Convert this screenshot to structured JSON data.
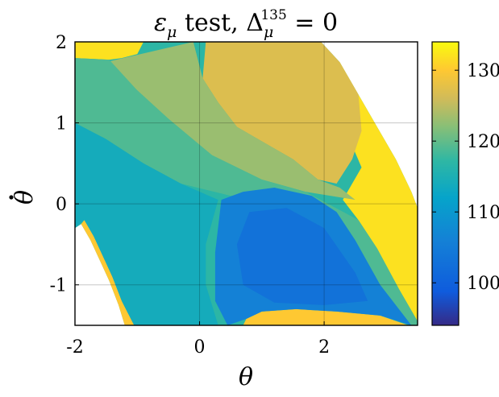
{
  "chart_data": {
    "type": "heatmap",
    "title": "εμ test, Δμ135 = 0",
    "title_parts": {
      "symbol": "ε",
      "symbol_sub": "μ",
      "middle": " test, ",
      "delta": "Δ",
      "delta_sub": "μ",
      "delta_sup": "135",
      "tail": " = 0"
    },
    "xlabel": "θ",
    "ylabel": "θ̇",
    "ylabel_base": "θ",
    "xlim": [
      -2,
      3.5
    ],
    "ylim": [
      -1.5,
      2
    ],
    "xticks": [
      -2,
      0,
      2
    ],
    "yticks": [
      -1,
      0,
      1,
      2
    ],
    "xtick_labels": [
      "-2",
      "0",
      "2"
    ],
    "ytick_labels": [
      "-1",
      "0",
      "1",
      "2"
    ],
    "grid": true,
    "colorbar": {
      "range": [
        94,
        134
      ],
      "ticks": [
        100,
        110,
        120,
        130
      ],
      "tick_labels": [
        "100",
        "110",
        "120",
        "130"
      ],
      "colormap": "parula",
      "position": "right"
    },
    "regions": [
      {
        "name": "white-top-right",
        "value": null,
        "polygon": [
          [
            0.55,
            2
          ],
          [
            3.5,
            2
          ],
          [
            3.5,
            -0.05
          ],
          [
            3.4,
            0.15
          ],
          [
            3.15,
            0.55
          ],
          [
            2.85,
            0.95
          ],
          [
            2.55,
            1.35
          ],
          [
            2.25,
            1.75
          ],
          [
            1.95,
            2
          ]
        ]
      },
      {
        "name": "white-bottom-left",
        "value": null,
        "polygon": [
          [
            -2,
            -1.5
          ],
          [
            -2,
            -0.3
          ],
          [
            -1.9,
            -0.25
          ],
          [
            -1.75,
            -0.45
          ],
          [
            -1.6,
            -0.7
          ],
          [
            -1.45,
            -0.95
          ],
          [
            -1.3,
            -1.25
          ],
          [
            -1.2,
            -1.5
          ]
        ]
      },
      {
        "name": "yellow-top-left",
        "value": 132,
        "polygon": [
          [
            -2,
            2
          ],
          [
            -0.9,
            2
          ],
          [
            -1.0,
            1.85
          ],
          [
            -1.25,
            1.8
          ],
          [
            -1.45,
            1.78
          ],
          [
            -2,
            1.8
          ]
        ]
      },
      {
        "name": "yellow-band-diagonal",
        "value": 132,
        "polygon": [
          [
            1.75,
            2
          ],
          [
            2.25,
            1.75
          ],
          [
            2.55,
            1.35
          ],
          [
            2.85,
            0.95
          ],
          [
            3.15,
            0.55
          ],
          [
            3.4,
            0.15
          ],
          [
            3.5,
            -0.05
          ],
          [
            3.5,
            -1.45
          ],
          [
            3.2,
            -1.05
          ],
          [
            2.85,
            -0.55
          ],
          [
            2.55,
            -0.2
          ],
          [
            2.3,
            0.05
          ],
          [
            2.6,
            0.45
          ],
          [
            2.35,
            0.9
          ],
          [
            2.05,
            1.35
          ]
        ]
      },
      {
        "name": "yellow-bottom-band",
        "value": 130,
        "polygon": [
          [
            0.7,
            -1.5
          ],
          [
            3.35,
            -1.5
          ],
          [
            2.9,
            -1.38
          ],
          [
            2.2,
            -1.33
          ],
          [
            1.55,
            -1.3
          ],
          [
            1.0,
            -1.33
          ],
          [
            0.75,
            -1.42
          ]
        ]
      },
      {
        "name": "yellow-bottom-left-edge",
        "value": 130,
        "polygon": [
          [
            -1.9,
            -0.25
          ],
          [
            -1.75,
            -0.45
          ],
          [
            -1.6,
            -0.7
          ],
          [
            -1.45,
            -0.95
          ],
          [
            -1.3,
            -1.25
          ],
          [
            -1.2,
            -1.5
          ],
          [
            -1.05,
            -1.5
          ],
          [
            -1.25,
            -1.2
          ],
          [
            -1.4,
            -0.9
          ],
          [
            -1.55,
            -0.65
          ],
          [
            -1.7,
            -0.4
          ],
          [
            -1.85,
            -0.2
          ]
        ]
      },
      {
        "name": "orange-upper-right",
        "value": 127,
        "polygon": [
          [
            0.1,
            2
          ],
          [
            1.95,
            2
          ],
          [
            2.25,
            1.75
          ],
          [
            2.55,
            1.35
          ],
          [
            2.6,
            0.9
          ],
          [
            2.45,
            0.55
          ],
          [
            2.2,
            0.25
          ],
          [
            1.9,
            0.3
          ],
          [
            1.5,
            0.55
          ],
          [
            1.05,
            0.75
          ],
          [
            0.6,
            0.95
          ],
          [
            0.3,
            1.25
          ],
          [
            0.05,
            1.55
          ]
        ]
      },
      {
        "name": "light-green-mid",
        "value": 123,
        "polygon": [
          [
            -1.5,
            1.75
          ],
          [
            -0.1,
            2
          ],
          [
            0.05,
            1.55
          ],
          [
            0.3,
            1.25
          ],
          [
            0.6,
            0.95
          ],
          [
            1.05,
            0.75
          ],
          [
            1.5,
            0.55
          ],
          [
            1.9,
            0.3
          ],
          [
            2.25,
            0.2
          ],
          [
            2.5,
            0.05
          ],
          [
            1.7,
            0.15
          ],
          [
            1.0,
            0.3
          ],
          [
            0.2,
            0.6
          ],
          [
            -0.5,
            1.05
          ],
          [
            -1.0,
            1.4
          ]
        ]
      },
      {
        "name": "green-left-band",
        "value": 119,
        "polygon": [
          [
            -2,
            1.8
          ],
          [
            -1.45,
            1.78
          ],
          [
            -1.0,
            1.4
          ],
          [
            -0.5,
            1.05
          ],
          [
            0.2,
            0.6
          ],
          [
            1.0,
            0.3
          ],
          [
            1.7,
            0.15
          ],
          [
            2.55,
            -0.2
          ],
          [
            2.85,
            -0.55
          ],
          [
            3.2,
            -1.05
          ],
          [
            3.5,
            -1.45
          ],
          [
            3.5,
            -1.5
          ],
          [
            3.4,
            -1.5
          ],
          [
            2.9,
            -1.0
          ],
          [
            2.5,
            -0.45
          ],
          [
            2.2,
            -0.1
          ],
          [
            1.8,
            0.1
          ],
          [
            1.2,
            0.15
          ],
          [
            0.5,
            0.1
          ],
          [
            -0.3,
            0.25
          ],
          [
            -0.9,
            0.5
          ],
          [
            -1.5,
            0.8
          ],
          [
            -2,
            1.0
          ]
        ]
      },
      {
        "name": "teal-lower-left",
        "value": 114,
        "polygon": [
          [
            -2,
            1.0
          ],
          [
            -1.5,
            0.8
          ],
          [
            -0.9,
            0.5
          ],
          [
            -0.3,
            0.25
          ],
          [
            0.3,
            0.05
          ],
          [
            0.1,
            -0.5
          ],
          [
            0.1,
            -1.0
          ],
          [
            0.3,
            -1.5
          ],
          [
            -1.05,
            -1.5
          ],
          [
            -1.25,
            -1.2
          ],
          [
            -1.4,
            -0.9
          ],
          [
            -1.55,
            -0.65
          ],
          [
            -1.7,
            -0.4
          ],
          [
            -1.85,
            -0.2
          ],
          [
            -2,
            -0.3
          ]
        ]
      },
      {
        "name": "blue-basin",
        "value": 106,
        "polygon": [
          [
            0.35,
            0.05
          ],
          [
            0.7,
            0.15
          ],
          [
            1.2,
            0.2
          ],
          [
            1.8,
            0.1
          ],
          [
            2.2,
            -0.1
          ],
          [
            2.5,
            -0.45
          ],
          [
            2.9,
            -1.0
          ],
          [
            3.4,
            -1.5
          ],
          [
            2.9,
            -1.38
          ],
          [
            2.2,
            -1.33
          ],
          [
            1.55,
            -1.3
          ],
          [
            1.0,
            -1.33
          ],
          [
            0.75,
            -1.42
          ],
          [
            0.45,
            -1.5
          ],
          [
            0.25,
            -1.2
          ],
          [
            0.25,
            -0.6
          ]
        ]
      },
      {
        "name": "blue-core",
        "value": 103,
        "polygon": [
          [
            0.8,
            -0.1
          ],
          [
            1.4,
            -0.05
          ],
          [
            2.0,
            -0.3
          ],
          [
            2.5,
            -0.85
          ],
          [
            2.7,
            -1.2
          ],
          [
            2.0,
            -1.25
          ],
          [
            1.2,
            -1.22
          ],
          [
            0.7,
            -1.0
          ],
          [
            0.6,
            -0.5
          ]
        ]
      }
    ]
  }
}
